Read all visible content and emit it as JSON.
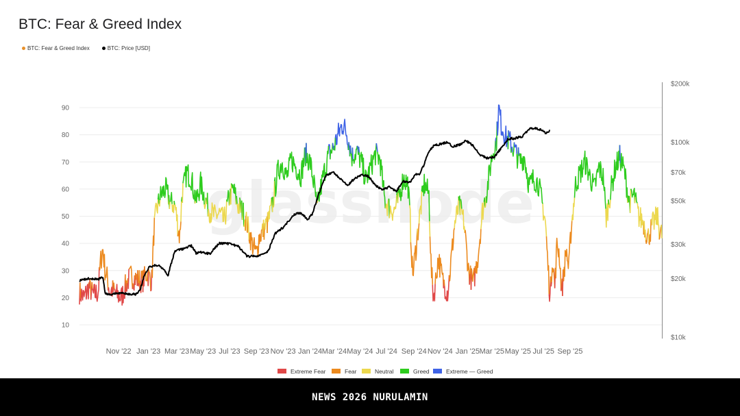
{
  "title": "BTC: Fear & Greed Index",
  "legend": [
    {
      "label": "BTC: Fear & Greed Index",
      "color": "#e8902a"
    },
    {
      "label": "BTC: Price [USD]",
      "color": "#000000"
    }
  ],
  "watermark": "glassnode",
  "footer": {
    "text": "NEWS 2026 NURULAMIN"
  },
  "chart_data": {
    "type": "line",
    "title": "BTC: Fear & Greed Index",
    "x_range": [
      "2022-09-10",
      "2025-10-05"
    ],
    "x_ticks": [
      {
        "label": "Nov '22",
        "t": 0.084
      },
      {
        "label": "Jan '23",
        "t": 0.148
      },
      {
        "label": "Mar '23",
        "t": 0.209
      },
      {
        "label": "May '23",
        "t": 0.265
      },
      {
        "label": "Jul '23",
        "t": 0.322
      },
      {
        "label": "Sep '23",
        "t": 0.38
      },
      {
        "label": "Nov '23",
        "t": 0.437
      },
      {
        "label": "Jan '24",
        "t": 0.495
      },
      {
        "label": "Mar '24",
        "t": 0.547
      },
      {
        "label": "May '24",
        "t": 0.602
      },
      {
        "label": "Jul '24",
        "t": 0.659
      },
      {
        "label": "Sep '24",
        "t": 0.718
      },
      {
        "label": "Nov '24",
        "t": 0.774
      },
      {
        "label": "Jan '25",
        "t": 0.833
      },
      {
        "label": "Mar '25",
        "t": 0.885
      },
      {
        "label": "May '25",
        "t": 0.941
      },
      {
        "label": "Jul '25",
        "t": 0.996
      },
      {
        "label": "Sep '25",
        "t": 1.053
      }
    ],
    "y_left": {
      "min": 5,
      "max": 95,
      "ticks": [
        10,
        20,
        30,
        40,
        50,
        60,
        70,
        80,
        90
      ]
    },
    "y_right": {
      "scale": "log",
      "min": 10000,
      "max": 200000,
      "ticks": [
        {
          "value": 10000,
          "label": "$10k"
        },
        {
          "value": 20000,
          "label": "$20k"
        },
        {
          "value": 30000,
          "label": "$30k"
        },
        {
          "value": 50000,
          "label": "$50k"
        },
        {
          "value": 70000,
          "label": "$70k"
        },
        {
          "value": 100000,
          "label": "$100k"
        },
        {
          "value": 200000,
          "label": "$200k"
        }
      ]
    },
    "fear_greed_legend": [
      {
        "label": "Extreme Fear",
        "color": "#e04848"
      },
      {
        "label": "Fear",
        "color": "#ec8a1e"
      },
      {
        "label": "Neutral",
        "color": "#ecd84e"
      },
      {
        "label": "Greed",
        "color": "#2ecc1e"
      },
      {
        "label": "Extreme — Greed",
        "color": "#3f63e6"
      }
    ],
    "fear_greed_keypoints": [
      [
        0.0,
        22
      ],
      [
        0.01,
        20
      ],
      [
        0.02,
        24
      ],
      [
        0.03,
        21
      ],
      [
        0.04,
        22
      ],
      [
        0.045,
        33
      ],
      [
        0.05,
        38
      ],
      [
        0.055,
        30
      ],
      [
        0.06,
        27
      ],
      [
        0.065,
        22
      ],
      [
        0.07,
        23
      ],
      [
        0.08,
        21
      ],
      [
        0.09,
        20
      ],
      [
        0.1,
        25
      ],
      [
        0.11,
        28
      ],
      [
        0.12,
        27
      ],
      [
        0.135,
        26
      ],
      [
        0.145,
        29
      ],
      [
        0.155,
        26
      ],
      [
        0.16,
        45
      ],
      [
        0.165,
        52
      ],
      [
        0.175,
        58
      ],
      [
        0.185,
        60
      ],
      [
        0.195,
        55
      ],
      [
        0.205,
        54
      ],
      [
        0.21,
        48
      ],
      [
        0.215,
        42
      ],
      [
        0.22,
        58
      ],
      [
        0.23,
        66
      ],
      [
        0.24,
        64
      ],
      [
        0.25,
        55
      ],
      [
        0.26,
        62
      ],
      [
        0.27,
        56
      ],
      [
        0.28,
        52
      ],
      [
        0.29,
        50
      ],
      [
        0.3,
        51
      ],
      [
        0.31,
        48
      ],
      [
        0.32,
        56
      ],
      [
        0.33,
        60
      ],
      [
        0.34,
        54
      ],
      [
        0.35,
        52
      ],
      [
        0.36,
        47
      ],
      [
        0.37,
        40
      ],
      [
        0.38,
        36
      ],
      [
        0.385,
        42
      ],
      [
        0.395,
        45
      ],
      [
        0.405,
        48
      ],
      [
        0.415,
        55
      ],
      [
        0.425,
        66
      ],
      [
        0.435,
        70
      ],
      [
        0.445,
        64
      ],
      [
        0.455,
        71
      ],
      [
        0.465,
        68
      ],
      [
        0.475,
        65
      ],
      [
        0.485,
        73
      ],
      [
        0.495,
        70
      ],
      [
        0.505,
        60
      ],
      [
        0.51,
        52
      ],
      [
        0.515,
        58
      ],
      [
        0.525,
        66
      ],
      [
        0.535,
        73
      ],
      [
        0.545,
        75
      ],
      [
        0.555,
        80
      ],
      [
        0.565,
        84
      ],
      [
        0.575,
        80
      ],
      [
        0.585,
        72
      ],
      [
        0.595,
        74
      ],
      [
        0.605,
        70
      ],
      [
        0.615,
        63
      ],
      [
        0.625,
        68
      ],
      [
        0.635,
        73
      ],
      [
        0.645,
        71
      ],
      [
        0.655,
        56
      ],
      [
        0.665,
        53
      ],
      [
        0.675,
        52
      ],
      [
        0.685,
        56
      ],
      [
        0.695,
        64
      ],
      [
        0.705,
        62
      ],
      [
        0.71,
        48
      ],
      [
        0.715,
        28
      ],
      [
        0.72,
        35
      ],
      [
        0.73,
        50
      ],
      [
        0.74,
        62
      ],
      [
        0.75,
        58
      ],
      [
        0.755,
        30
      ],
      [
        0.76,
        20
      ],
      [
        0.765,
        27
      ],
      [
        0.77,
        35
      ],
      [
        0.78,
        26
      ],
      [
        0.79,
        22
      ],
      [
        0.795,
        29
      ],
      [
        0.805,
        47
      ],
      [
        0.815,
        54
      ],
      [
        0.825,
        48
      ],
      [
        0.835,
        30
      ],
      [
        0.845,
        25
      ],
      [
        0.855,
        35
      ],
      [
        0.865,
        52
      ],
      [
        0.875,
        60
      ],
      [
        0.885,
        72
      ],
      [
        0.89,
        75
      ],
      [
        0.895,
        78
      ],
      [
        0.9,
        90
      ],
      [
        0.905,
        84
      ],
      [
        0.915,
        79
      ],
      [
        0.925,
        77
      ],
      [
        0.935,
        74
      ],
      [
        0.945,
        70
      ],
      [
        0.955,
        72
      ],
      [
        0.965,
        61
      ],
      [
        0.975,
        64
      ],
      [
        0.985,
        62
      ],
      [
        0.995,
        53
      ],
      [
        1.0,
        48
      ],
      [
        1.005,
        33
      ],
      [
        1.01,
        20
      ],
      [
        1.015,
        35
      ],
      [
        1.02,
        24
      ],
      [
        1.025,
        40
      ],
      [
        1.03,
        36
      ],
      [
        1.035,
        22
      ],
      [
        1.04,
        30
      ],
      [
        1.045,
        38
      ],
      [
        1.05,
        30
      ],
      [
        1.055,
        45
      ],
      [
        1.065,
        62
      ],
      [
        1.075,
        66
      ],
      [
        1.085,
        70
      ],
      [
        1.095,
        65
      ],
      [
        1.105,
        60
      ],
      [
        1.115,
        68
      ],
      [
        1.125,
        64
      ],
      [
        1.13,
        49
      ],
      [
        1.14,
        59
      ],
      [
        1.15,
        68
      ],
      [
        1.16,
        72
      ],
      [
        1.17,
        66
      ],
      [
        1.18,
        55
      ],
      [
        1.19,
        58
      ],
      [
        1.2,
        50
      ],
      [
        1.21,
        48
      ],
      [
        1.22,
        42
      ],
      [
        1.23,
        47
      ],
      [
        1.24,
        50
      ],
      [
        1.245,
        45
      ],
      [
        1.25,
        43
      ]
    ],
    "price_keypoints_usd": [
      [
        0.0,
        19500
      ],
      [
        0.02,
        20000
      ],
      [
        0.04,
        19800
      ],
      [
        0.05,
        20300
      ],
      [
        0.055,
        16800
      ],
      [
        0.065,
        16500
      ],
      [
        0.08,
        16900
      ],
      [
        0.1,
        16700
      ],
      [
        0.12,
        16600
      ],
      [
        0.13,
        17400
      ],
      [
        0.14,
        21000
      ],
      [
        0.15,
        23000
      ],
      [
        0.16,
        23300
      ],
      [
        0.17,
        23500
      ],
      [
        0.18,
        22300
      ],
      [
        0.19,
        20600
      ],
      [
        0.205,
        27700
      ],
      [
        0.22,
        28300
      ],
      [
        0.24,
        29500
      ],
      [
        0.25,
        27000
      ],
      [
        0.26,
        27300
      ],
      [
        0.28,
        26800
      ],
      [
        0.3,
        30300
      ],
      [
        0.32,
        30200
      ],
      [
        0.34,
        29300
      ],
      [
        0.36,
        26000
      ],
      [
        0.38,
        26000
      ],
      [
        0.39,
        26500
      ],
      [
        0.405,
        27500
      ],
      [
        0.42,
        34000
      ],
      [
        0.44,
        37000
      ],
      [
        0.46,
        42500
      ],
      [
        0.47,
        43500
      ],
      [
        0.48,
        42500
      ],
      [
        0.49,
        40000
      ],
      [
        0.5,
        43000
      ],
      [
        0.51,
        51000
      ],
      [
        0.52,
        60000
      ],
      [
        0.53,
        68000
      ],
      [
        0.545,
        70000
      ],
      [
        0.56,
        65000
      ],
      [
        0.575,
        60000
      ],
      [
        0.59,
        65000
      ],
      [
        0.605,
        68000
      ],
      [
        0.62,
        67000
      ],
      [
        0.635,
        60000
      ],
      [
        0.65,
        57000
      ],
      [
        0.665,
        59000
      ],
      [
        0.68,
        56000
      ],
      [
        0.695,
        63000
      ],
      [
        0.71,
        62000
      ],
      [
        0.72,
        68000
      ],
      [
        0.73,
        69000
      ],
      [
        0.74,
        77000
      ],
      [
        0.75,
        90000
      ],
      [
        0.76,
        96000
      ],
      [
        0.775,
        98000
      ],
      [
        0.79,
        100000
      ],
      [
        0.8,
        95000
      ],
      [
        0.815,
        97000
      ],
      [
        0.83,
        102000
      ],
      [
        0.845,
        96000
      ],
      [
        0.86,
        86000
      ],
      [
        0.875,
        83000
      ],
      [
        0.89,
        84000
      ],
      [
        0.905,
        93000
      ],
      [
        0.92,
        104000
      ],
      [
        0.935,
        105000
      ],
      [
        0.95,
        107000
      ],
      [
        0.965,
        117000
      ],
      [
        0.98,
        118000
      ],
      [
        0.99,
        116000
      ],
      [
        1.0,
        112000
      ],
      [
        1.01,
        114000
      ]
    ]
  }
}
